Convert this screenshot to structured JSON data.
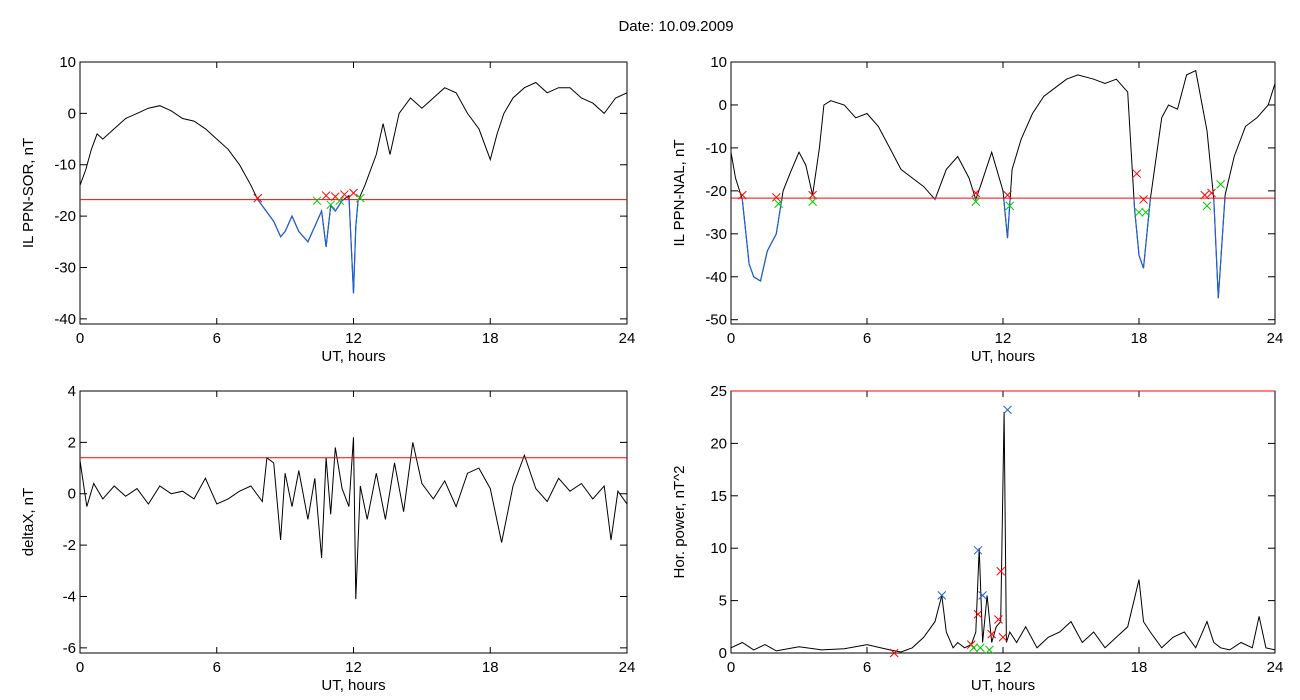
{
  "figure": {
    "date_label": "Date:  10.09.2009"
  },
  "colors": {
    "trace": "#000000",
    "below": "#1f5fd6",
    "threshold": "#ff0000",
    "start_marker": "#ff0000",
    "end_marker": "#00cc00",
    "peak_marker": "#1f5fd6"
  },
  "chart_data": [
    {
      "type": "line",
      "ylabel": "IL PPN-SOR, nT",
      "xlabel": "UT, hours",
      "xlim": [
        0,
        24
      ],
      "ylim": [
        -41,
        10
      ],
      "x_ticks": [
        0,
        6,
        12,
        18,
        24
      ],
      "y_ticks": [
        -40,
        -30,
        -20,
        -10,
        0,
        10
      ],
      "threshold": -16.8,
      "x": [
        0,
        0.25,
        0.5,
        0.75,
        1,
        1.5,
        2,
        2.5,
        3,
        3.5,
        4,
        4.5,
        5,
        5.5,
        6,
        6.5,
        7,
        7.5,
        7.8,
        8,
        8.5,
        8.8,
        9,
        9.3,
        9.6,
        10,
        10.3,
        10.6,
        10.8,
        11,
        11.2,
        11.5,
        11.8,
        12,
        12.1,
        12.2,
        12.5,
        13,
        13.3,
        13.6,
        14,
        14.5,
        15,
        15.5,
        16,
        16.5,
        17,
        17.5,
        18,
        18.3,
        18.6,
        19,
        19.5,
        20,
        20.5,
        21,
        21.5,
        22,
        22.5,
        23,
        23.5,
        24
      ],
      "y": [
        -14,
        -11,
        -7,
        -4,
        -5,
        -3,
        -1,
        0,
        1,
        1.5,
        0.5,
        -1,
        -1.5,
        -3,
        -5,
        -7,
        -10,
        -14,
        -16.8,
        -18,
        -21,
        -24,
        -23,
        -20,
        -23,
        -25,
        -22,
        -19,
        -26,
        -18,
        -19,
        -17,
        -16,
        -35,
        -22,
        -17,
        -14,
        -8,
        -2,
        -8,
        0,
        3,
        1,
        3,
        5,
        4,
        0,
        -3,
        -9,
        -4,
        0,
        3,
        5,
        6,
        4,
        5,
        5,
        3,
        2,
        0,
        3,
        4
      ],
      "crossings_start": [
        [
          7.8,
          -16.5
        ],
        [
          10.8,
          -16
        ],
        [
          11.2,
          -16.2
        ],
        [
          11.6,
          -15.8
        ],
        [
          12.0,
          -15.5
        ]
      ],
      "crossings_end": [
        [
          10.4,
          -17
        ],
        [
          11.0,
          -17.8
        ],
        [
          11.4,
          -17
        ],
        [
          12.3,
          -16.5
        ]
      ]
    },
    {
      "type": "line",
      "ylabel": "IL PPN-NAL, nT",
      "xlabel": "UT, hours",
      "xlim": [
        0,
        24
      ],
      "ylim": [
        -51,
        10
      ],
      "x_ticks": [
        0,
        6,
        12,
        18,
        24
      ],
      "y_ticks": [
        -50,
        -40,
        -30,
        -20,
        -10,
        0,
        10
      ],
      "threshold": -21.7,
      "x": [
        0,
        0.2,
        0.5,
        0.8,
        1,
        1.3,
        1.6,
        2,
        2.3,
        2.6,
        3,
        3.3,
        3.6,
        3.9,
        4.1,
        4.4,
        5,
        5.5,
        6,
        6.5,
        7,
        7.5,
        8,
        8.5,
        9,
        9.5,
        10,
        10.5,
        10.8,
        11,
        11.5,
        12,
        12.2,
        12.4,
        12.8,
        13.3,
        13.8,
        14.3,
        14.8,
        15.3,
        16,
        16.5,
        17,
        17.5,
        17.8,
        18,
        18.2,
        18.5,
        19,
        19.3,
        19.7,
        20.1,
        20.5,
        21,
        21.3,
        21.5,
        21.8,
        22.2,
        22.7,
        23.2,
        23.7,
        24
      ],
      "y": [
        -11,
        -17,
        -22,
        -37,
        -40,
        -41,
        -34,
        -30,
        -20,
        -16,
        -11,
        -14,
        -21,
        -10,
        0,
        1,
        0,
        -3,
        -2,
        -5,
        -10,
        -15,
        -17,
        -19,
        -22,
        -15,
        -12,
        -17,
        -22,
        -19,
        -11,
        -20,
        -31,
        -15,
        -8,
        -2,
        2,
        4,
        6,
        7,
        6,
        5,
        6,
        3,
        -24,
        -35,
        -38,
        -22,
        -3,
        0,
        -1,
        7,
        8,
        -6,
        -22,
        -45,
        -21,
        -12,
        -5,
        -3,
        0,
        5
      ],
      "crossings_start": [
        [
          0.5,
          -21
        ],
        [
          2.0,
          -21.5
        ],
        [
          3.6,
          -21
        ],
        [
          10.8,
          -20.5
        ],
        [
          12.2,
          -21
        ],
        [
          17.9,
          -16
        ],
        [
          18.2,
          -22
        ],
        [
          20.9,
          -21
        ],
        [
          21.2,
          -20.5
        ]
      ],
      "crossings_end": [
        [
          2.1,
          -23
        ],
        [
          3.6,
          -22.5
        ],
        [
          10.8,
          -22.5
        ],
        [
          12.3,
          -23.5
        ],
        [
          18.0,
          -25
        ],
        [
          18.3,
          -25
        ],
        [
          21.0,
          -23.5
        ],
        [
          21.6,
          -18.5
        ]
      ]
    },
    {
      "type": "line",
      "ylabel": "deltaX, nT",
      "xlabel": "UT, hours",
      "xlim": [
        0,
        24
      ],
      "ylim": [
        -6.2,
        4
      ],
      "x_ticks": [
        0,
        6,
        12,
        18,
        24
      ],
      "y_ticks": [
        -6,
        -4,
        -2,
        0,
        2,
        4
      ],
      "threshold": 1.4,
      "x": [
        0,
        0.3,
        0.6,
        1,
        1.5,
        2,
        2.5,
        3,
        3.5,
        4,
        4.5,
        5,
        5.5,
        6,
        6.5,
        7,
        7.5,
        8,
        8.2,
        8.5,
        8.8,
        9,
        9.3,
        9.6,
        10,
        10.3,
        10.6,
        10.8,
        11,
        11.2,
        11.5,
        11.8,
        12,
        12.1,
        12.3,
        12.6,
        13,
        13.4,
        13.8,
        14.2,
        14.6,
        15,
        15.5,
        16,
        16.5,
        17,
        17.5,
        18,
        18.5,
        19,
        19.5,
        20,
        20.5,
        21,
        21.5,
        22,
        22.5,
        23,
        23.3,
        23.6,
        24
      ],
      "y": [
        1.3,
        -0.5,
        0.4,
        -0.2,
        0.3,
        -0.1,
        0.2,
        -0.4,
        0.3,
        0,
        0.1,
        -0.2,
        0.6,
        -0.4,
        -0.2,
        0.1,
        0.3,
        -0.3,
        1.4,
        1.2,
        -1.8,
        0.8,
        -0.5,
        0.9,
        -1,
        0.6,
        -2.5,
        1.4,
        -0.8,
        1.8,
        0.2,
        -0.5,
        2.2,
        -4.1,
        0.3,
        -1,
        0.8,
        -1,
        1.2,
        -0.7,
        2,
        0.4,
        -0.2,
        0.5,
        -0.5,
        0.8,
        1,
        0.2,
        -1.9,
        0.3,
        1.5,
        0.2,
        -0.3,
        0.6,
        0.1,
        0.4,
        -0.2,
        0.3,
        -1.8,
        0.1,
        -0.4
      ]
    },
    {
      "type": "line",
      "ylabel": "Hor. power, nT^2",
      "xlabel": "UT, hours",
      "xlim": [
        0,
        24
      ],
      "ylim": [
        0,
        25
      ],
      "x_ticks": [
        0,
        6,
        12,
        18,
        24
      ],
      "y_ticks": [
        0,
        5,
        10,
        15,
        20,
        25
      ],
      "threshold": 25,
      "x": [
        0,
        0.5,
        1,
        1.5,
        2,
        3,
        4,
        5,
        6,
        7,
        7.5,
        8,
        8.5,
        9,
        9.3,
        9.5,
        9.8,
        10,
        10.3,
        10.6,
        10.8,
        10.95,
        11.1,
        11.3,
        11.5,
        11.7,
        11.9,
        12.05,
        12.15,
        12.3,
        12.6,
        13,
        13.5,
        14,
        14.5,
        15,
        15.5,
        16,
        16.5,
        17,
        17.5,
        18,
        18.2,
        18.5,
        19,
        19.5,
        20,
        20.5,
        21,
        21.3,
        21.6,
        22,
        22.5,
        23,
        23.3,
        23.6,
        24
      ],
      "y": [
        0.5,
        1,
        0.3,
        0.8,
        0.2,
        0.6,
        0.3,
        0.4,
        0.8,
        0.3,
        0.1,
        0.5,
        1.5,
        3,
        5.5,
        2,
        0.5,
        1,
        0.5,
        0.8,
        2,
        10,
        1,
        5.5,
        1,
        2.5,
        3,
        23,
        1,
        2,
        1,
        2.5,
        0.5,
        1.5,
        2,
        3,
        1,
        2,
        0.5,
        1.5,
        2.5,
        7,
        3,
        2,
        0.5,
        1.5,
        2,
        0.5,
        3,
        1,
        0.5,
        0.3,
        1,
        0.5,
        3.5,
        0.5,
        0.3
      ],
      "peaks": [
        [
          9.3,
          5.5
        ],
        [
          10.9,
          9.8
        ],
        [
          11.1,
          5.5
        ],
        [
          12.2,
          23.2
        ]
      ],
      "crossings_start": [
        [
          7.2,
          0
        ],
        [
          10.6,
          0.8
        ],
        [
          10.9,
          3.7
        ],
        [
          11.5,
          1.8
        ],
        [
          11.9,
          7.8
        ],
        [
          11.8,
          3.2
        ],
        [
          12.0,
          1.5
        ]
      ],
      "crossings_end": [
        [
          10.7,
          0.5
        ],
        [
          11.0,
          0.5
        ],
        [
          11.4,
          0.3
        ]
      ]
    }
  ]
}
